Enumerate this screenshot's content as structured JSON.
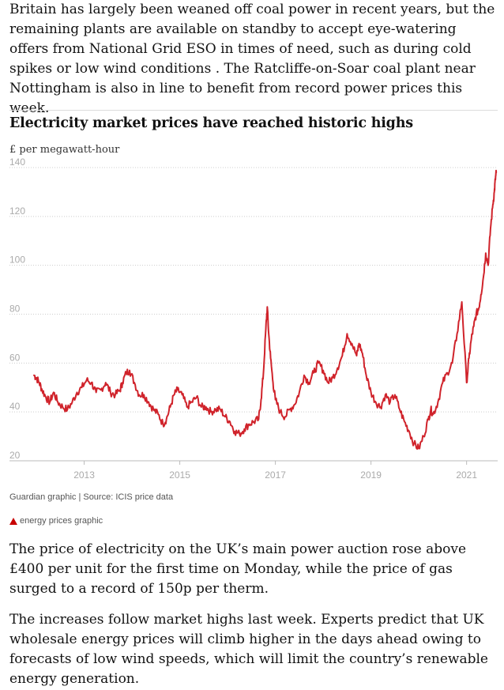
{
  "article": {
    "para1": "Britain has largely been weaned off coal power in recent years, but the remaining plants are available on standby to accept eye-watering offers from National Grid ESO in times of need, such as during cold spikes or low wind conditions . The Ratcliffe-on-Soar coal plant near Nottingham is also in line to benefit from record power prices this week.",
    "para2": "The price of electricity on the UK’s main power auction rose above £400 per unit for the first time on Monday, while the price of gas surged to a record of 150p per therm.",
    "para3": "The increases follow market highs last week. Experts predict that UK wholesale energy prices will climb higher in the days ahead owing to forecasts of low wind speeds, which will limit the country’s renewable energy generation."
  },
  "figure": {
    "caption": "Guardian graphic | Source: ICIS price data",
    "link_label": "energy prices graphic",
    "link_icon": "triangle-icon",
    "accent": "#c70000"
  },
  "chart_data": {
    "type": "line",
    "title": "Electricity market prices have reached historic highs",
    "ylabel": "£ per megawatt-hour",
    "xlabel": "",
    "ylim": [
      20,
      140
    ],
    "xlim": [
      2011.9,
      2021.65
    ],
    "yticks": [
      20,
      40,
      60,
      80,
      100,
      120,
      140
    ],
    "xticks": [
      2013,
      2015,
      2017,
      2019,
      2021
    ],
    "grid": true,
    "line_color": "#d0232b",
    "series": [
      {
        "x": [
          2011.95,
          2012.0,
          2012.06,
          2012.12,
          2012.2,
          2012.28,
          2012.36,
          2012.45,
          2012.55,
          2012.65,
          2012.75,
          2012.85,
          2012.95,
          2013.05,
          2013.15,
          2013.25,
          2013.35,
          2013.45,
          2013.55,
          2013.65,
          2013.75,
          2013.8,
          2013.88,
          2013.95,
          2014.05,
          2014.15,
          2014.25,
          2014.35,
          2014.45,
          2014.55,
          2014.65,
          2014.72,
          2014.8,
          2014.88,
          2014.95,
          2015.05,
          2015.15,
          2015.25,
          2015.35,
          2015.45,
          2015.55,
          2015.65,
          2015.75,
          2015.85,
          2015.95,
          2016.05,
          2016.15,
          2016.25,
          2016.35,
          2016.45,
          2016.55,
          2016.65,
          2016.7,
          2016.75,
          2016.8,
          2016.83,
          2016.86,
          2016.9,
          2016.95,
          2017.0,
          2017.1,
          2017.2,
          2017.3,
          2017.4,
          2017.5,
          2017.6,
          2017.7,
          2017.8,
          2017.9,
          2018.0,
          2018.1,
          2018.2,
          2018.3,
          2018.4,
          2018.5,
          2018.6,
          2018.7,
          2018.75,
          2018.82,
          2018.9,
          2019.0,
          2019.1,
          2019.2,
          2019.3,
          2019.4,
          2019.5,
          2019.6,
          2019.7,
          2019.8,
          2019.9,
          2020.0,
          2020.1,
          2020.2,
          2020.25,
          2020.3,
          2020.4,
          2020.5,
          2020.6,
          2020.7,
          2020.8,
          2020.9,
          2021.0,
          2021.05,
          2021.1,
          2021.15,
          2021.2,
          2021.25,
          2021.3,
          2021.35,
          2021.4,
          2021.45,
          2021.5,
          2021.55,
          2021.58,
          2021.6,
          2021.62
        ],
        "values": [
          55,
          54,
          52,
          49,
          46,
          44,
          48,
          44,
          42,
          41,
          44,
          48,
          50,
          53,
          52,
          48,
          49,
          52,
          48,
          47,
          49,
          52,
          56,
          57,
          52,
          47,
          47,
          44,
          41,
          39,
          35,
          37,
          42,
          47,
          49,
          47,
          42,
          44,
          46,
          42,
          42,
          40,
          41,
          41,
          38,
          36,
          32,
          31,
          33,
          35,
          36,
          37,
          45,
          56,
          74,
          83,
          72,
          62,
          52,
          45,
          40,
          38,
          41,
          43,
          48,
          55,
          52,
          56,
          60,
          57,
          52,
          54,
          58,
          63,
          72,
          68,
          63,
          68,
          64,
          55,
          48,
          44,
          42,
          47,
          44,
          47,
          41,
          36,
          32,
          27,
          25,
          30,
          37,
          41,
          39,
          44,
          52,
          56,
          60,
          72,
          85,
          52,
          62,
          70,
          75,
          80,
          82,
          88,
          95,
          105,
          100,
          115,
          125,
          130,
          135,
          138
        ]
      }
    ]
  }
}
